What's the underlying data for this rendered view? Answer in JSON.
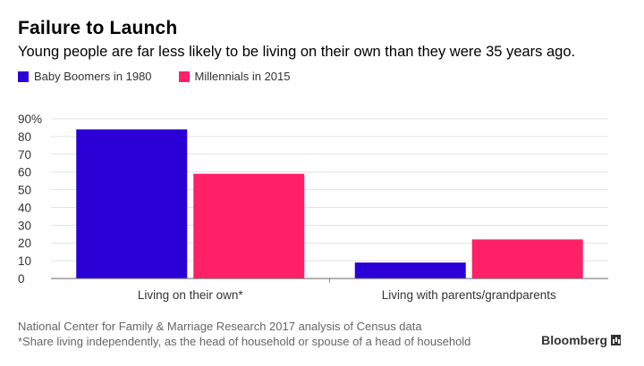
{
  "chart_data": {
    "type": "bar",
    "title": "Failure to Launch",
    "subtitle": "Young people are far less likely to be living on their own than they were 35 years ago.",
    "categories": [
      "Living on their own*",
      "Living with parents/grandparents"
    ],
    "series": [
      {
        "name": "Baby Boomers in 1980",
        "color": "#2b00d6",
        "values": [
          84,
          9
        ]
      },
      {
        "name": "Millennials in 2015",
        "color": "#ff2068",
        "values": [
          59,
          22
        ]
      }
    ],
    "ylim": [
      0,
      90
    ],
    "yticks": [
      "0",
      "10",
      "20",
      "30",
      "40",
      "50",
      "60",
      "70",
      "80",
      "90%"
    ],
    "xlabel": "",
    "ylabel": "",
    "grid": true,
    "legend_position": "top-left"
  },
  "footnotes": {
    "source": "National Center for Family & Marriage Research 2017 analysis of Census data",
    "note": "*Share living independently, as the head of household or spouse of a head of household"
  },
  "brand": "Bloomberg"
}
